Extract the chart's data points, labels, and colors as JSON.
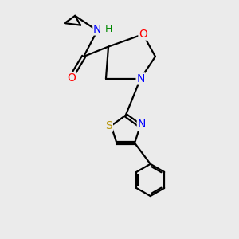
{
  "bg_color": "#ebebeb",
  "bond_color": "#000000",
  "bond_width": 1.6,
  "atom_colors": {
    "O": "#ff0000",
    "N": "#0000ff",
    "S": "#b8960c",
    "H": "#008800"
  },
  "font_size_atom": 10,
  "font_size_h": 9
}
